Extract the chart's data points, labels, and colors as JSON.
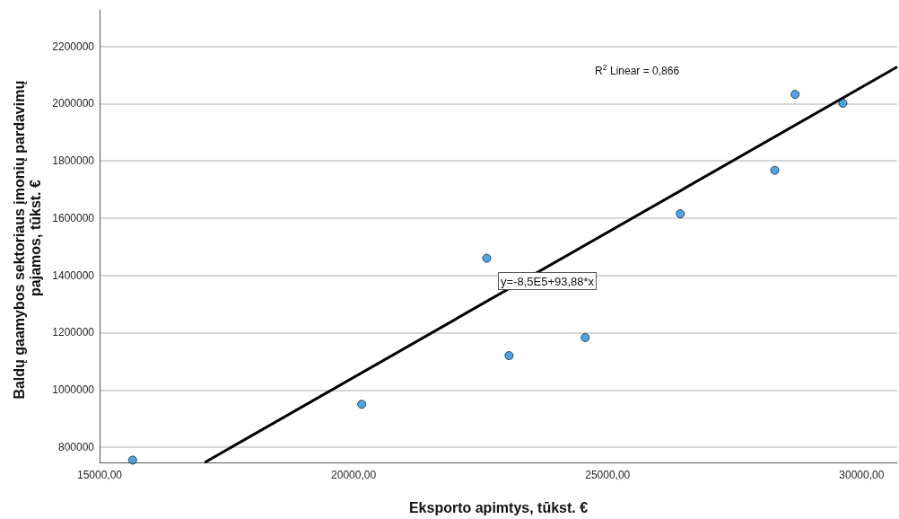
{
  "chart_data": {
    "type": "scatter",
    "xlabel": "Eksporto apimtys, tūkst. €",
    "ylabel": "Baldų gaamybos sektoriaus įmonių pardavimų pajamos, tūkst. €",
    "xlim": [
      15000,
      30700
    ],
    "ylim": [
      747000,
      2327000
    ],
    "xticks": [
      {
        "value": 15000,
        "label": "15000,00"
      },
      {
        "value": 20000,
        "label": "20000,00"
      },
      {
        "value": 25000,
        "label": "25000,00"
      },
      {
        "value": 30000,
        "label": "30000,00"
      }
    ],
    "yticks": [
      800000,
      1000000,
      1200000,
      1400000,
      1600000,
      1800000,
      2000000,
      2200000
    ],
    "grid": "y",
    "marker": "circle",
    "series": [
      {
        "color": "#1f8ee0",
        "x": [
          15650,
          20160,
          22620,
          23060,
          24560,
          26430,
          28290,
          28690,
          29630
        ],
        "values": [
          755000,
          950000,
          1460000,
          1120000,
          1183000,
          1615000,
          1767000,
          2032000,
          2001000
        ]
      },
      {
        "type": "line",
        "color": "#000000",
        "marker": "none",
        "line_style": "solid",
        "x": [
          17070,
          30700
        ],
        "values": [
          747000,
          2128000
        ]
      }
    ],
    "annotations": [
      "R$^{2}$ Linear = 0,866",
      "y=-8,5E5+93,88*x"
    ]
  }
}
